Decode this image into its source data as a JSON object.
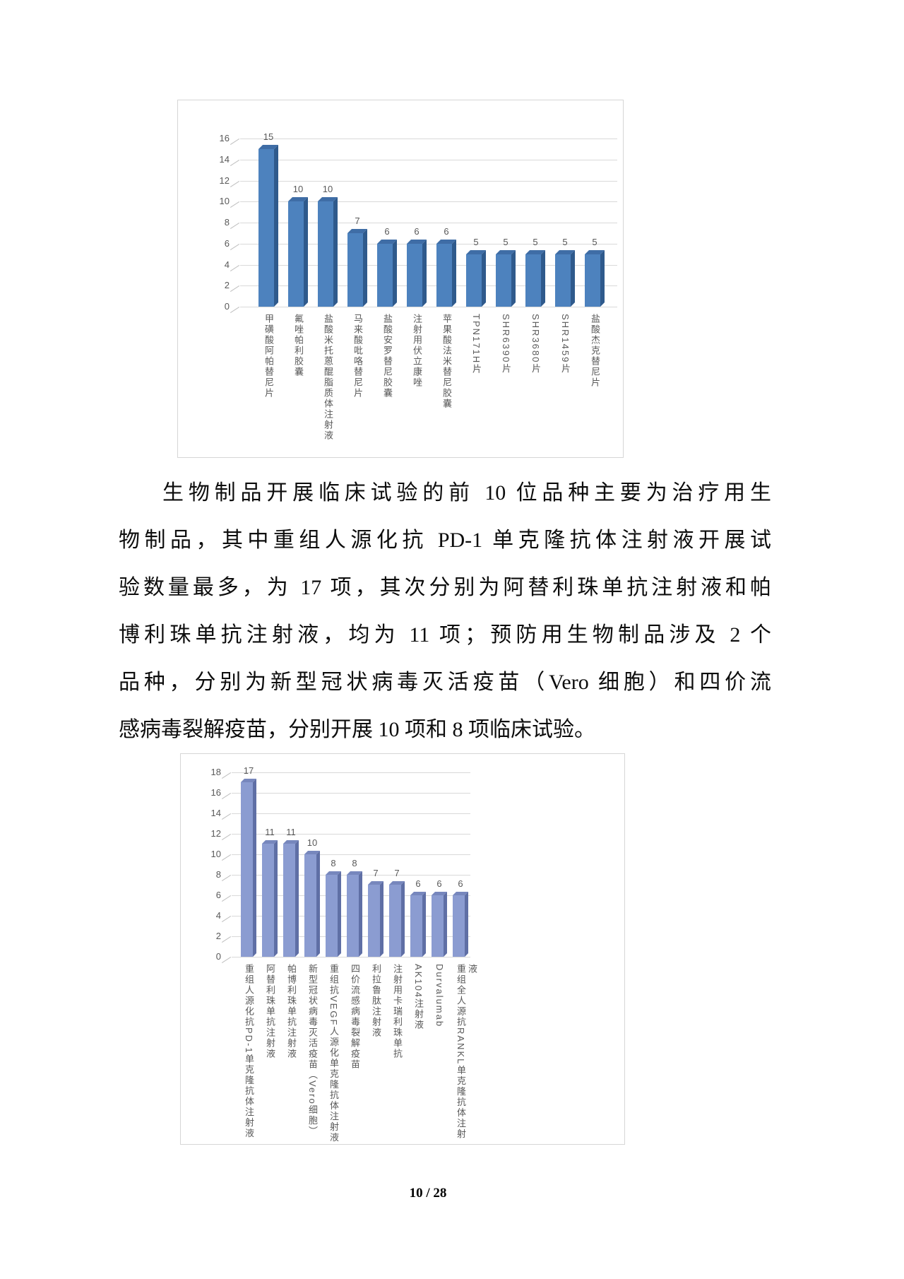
{
  "page": {
    "footer": "10 / 28",
    "background": "#ffffff"
  },
  "paragraph": {
    "lines": [
      "生物制品开展临床试验的前 10 位品种主要为治疗用生",
      "物制品，其中重组人源化抗 PD-1 单克隆抗体注射液开展试",
      "验数量最多，为 17 项，其次分别为阿替利珠单抗注射液和帕",
      "博利珠单抗注射液，均为 11 项；预防用生物制品涉及 2 个",
      "品种，分别为新型冠状病毒灭活疫苗（Vero 细胞）和四价流",
      "感病毒裂解疫苗，分别开展 10 项和 8 项临床试验。"
    ]
  },
  "chart_data": [
    {
      "type": "bar",
      "title": "",
      "xlabel": "",
      "ylabel": "",
      "categories": [
        "甲磺酸阿帕替尼片",
        "氟唑帕利胶囊",
        "盐酸米托蒽醌脂质体注射液",
        "马来酸吡咯替尼片",
        "盐酸安罗替尼胶囊",
        "注射用伏立康唑",
        "苹果酸法米替尼胶囊",
        "TPN171H片",
        "SHR6390片",
        "SHR3680片",
        "SHR1459片",
        "盐酸杰克替尼片"
      ],
      "values": [
        15,
        10,
        10,
        7,
        6,
        6,
        6,
        5,
        5,
        5,
        5,
        5
      ],
      "ylim": [
        0,
        16
      ],
      "ytick_step": 2,
      "grid": true,
      "legend": "none",
      "bar_style": "3d",
      "colors": {
        "face": "#4d82be",
        "top": "#3f6da6",
        "side": "#2f5a8c",
        "gridline": "#d9d9d9",
        "axis_text": "#595959",
        "value_text": "#595959"
      }
    },
    {
      "type": "bar",
      "title": "",
      "xlabel": "",
      "ylabel": "",
      "categories": [
        "重组人源化抗PD-1单克隆抗体注射液",
        "阿替利珠单抗注射液",
        "帕博利珠单抗注射液",
        "新型冠状病毒灭活疫苗（Vero细胞）",
        "重组抗VEGF人源化单克隆抗体注射液",
        "四价流感病毒裂解疫苗",
        "利拉鲁肽注射液",
        "注射用卡瑞利珠单抗",
        "AK104注射液",
        "Durvalumab",
        "重组全人源抗RANKL单克隆抗体注射液"
      ],
      "values": [
        17,
        11,
        11,
        10,
        8,
        8,
        7,
        7,
        6,
        6,
        6
      ],
      "ylim": [
        0,
        18
      ],
      "ytick_step": 2,
      "grid": true,
      "legend": "none",
      "bar_style": "3d",
      "colors": {
        "face": "#8b9cd1",
        "top": "#7787bd",
        "side": "#5f6fa5",
        "gridline": "#d9d9d9",
        "axis_text": "#595959",
        "value_text": "#595959"
      }
    }
  ]
}
